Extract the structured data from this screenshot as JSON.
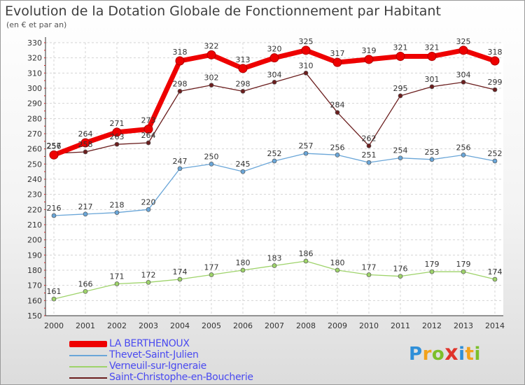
{
  "chart_data": {
    "type": "line",
    "title": "Evolution de la Dotation Globale de Fonctionnement par Habitant",
    "subtitle": "(en € et par an)",
    "xlabel": "",
    "ylabel": "",
    "ylim": [
      150,
      330
    ],
    "y_ticks": [
      150,
      160,
      170,
      180,
      190,
      200,
      210,
      220,
      230,
      240,
      250,
      260,
      270,
      280,
      290,
      300,
      310,
      320,
      330
    ],
    "categories": [
      "2000",
      "2001",
      "2002",
      "2003",
      "2004",
      "2005",
      "2006",
      "2007",
      "2008",
      "2009",
      "2010",
      "2011",
      "2012",
      "2013",
      "2014"
    ],
    "grid": true,
    "legend_position": "bottom-left",
    "series": [
      {
        "name": "Saint-Christophe-en-Boucherie",
        "color": "#6b1e1e",
        "values": [
          257,
          258,
          263,
          264,
          298,
          302,
          298,
          304,
          310,
          284,
          262,
          295,
          301,
          304,
          299
        ]
      },
      {
        "name": "Verneuil-sur-Igneraie",
        "color": "#9ed36a",
        "values": [
          161,
          166,
          171,
          172,
          174,
          177,
          180,
          183,
          186,
          180,
          177,
          176,
          179,
          179,
          174
        ]
      },
      {
        "name": "Thevet-Saint-Julien",
        "color": "#6aa6d8",
        "values": [
          216,
          217,
          218,
          220,
          247,
          250,
          245,
          252,
          257,
          256,
          251,
          254,
          253,
          256,
          252
        ]
      },
      {
        "name": "LA BERTHENOUX",
        "color": "#ee0000",
        "values": [
          256,
          264,
          271,
          273,
          318,
          322,
          313,
          320,
          325,
          317,
          319,
          321,
          321,
          325,
          318
        ]
      }
    ]
  },
  "legend": {
    "items": [
      {
        "name": "LA BERTHENOUX",
        "color": "#ee0000"
      },
      {
        "name": "Thevet-Saint-Julien",
        "color": "#6aa6d8"
      },
      {
        "name": "Verneuil-sur-Igneraie",
        "color": "#9ed36a"
      },
      {
        "name": "Saint-Christophe-en-Boucherie",
        "color": "#6b1e1e"
      }
    ]
  },
  "logo": {
    "p": "P",
    "r": "r",
    "o": "o",
    "x": "x",
    "i": "i",
    "t": "t",
    "i2": "i"
  }
}
